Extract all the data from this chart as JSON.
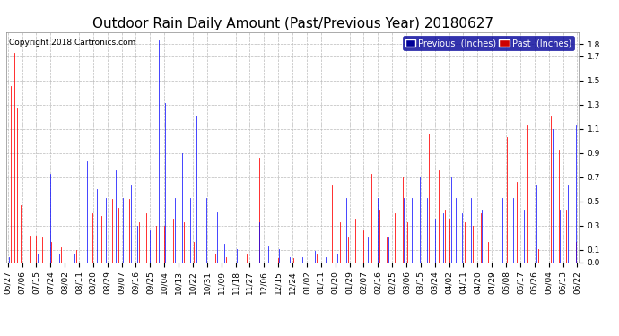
{
  "title": "Outdoor Rain Daily Amount (Past/Previous Year) 20180627",
  "copyright": "Copyright 2018 Cartronics.com",
  "legend_labels": [
    "Previous  (Inches)",
    "Past  (Inches)"
  ],
  "legend_colors": [
    "#0000ff",
    "#ff0000"
  ],
  "legend_bg_colors": [
    "#000099",
    "#cc0000"
  ],
  "ylim": [
    0.0,
    1.9
  ],
  "yticks": [
    0.0,
    0.1,
    0.3,
    0.5,
    0.7,
    0.9,
    1.1,
    1.3,
    1.5,
    1.7,
    1.8
  ],
  "background_color": "#ffffff",
  "grid_color": "#bbbbbb",
  "title_fontsize": 11,
  "tick_fontsize": 6.5,
  "x_labels": [
    "06/27",
    "07/06",
    "07/15",
    "07/24",
    "08/02",
    "08/11",
    "08/20",
    "08/29",
    "09/07",
    "09/16",
    "09/25",
    "10/04",
    "10/13",
    "10/22",
    "10/31",
    "11/09",
    "11/18",
    "11/27",
    "12/06",
    "12/15",
    "12/24",
    "01/02",
    "01/11",
    "01/20",
    "01/29",
    "02/07",
    "02/16",
    "02/25",
    "03/06",
    "03/15",
    "03/24",
    "04/02",
    "04/11",
    "04/20",
    "04/29",
    "05/08",
    "05/17",
    "05/26",
    "06/04",
    "06/13",
    "06/22"
  ],
  "previous_color": "#0000ff",
  "past_color": "#ff0000",
  "black_color": "#000000",
  "n_days": 366
}
